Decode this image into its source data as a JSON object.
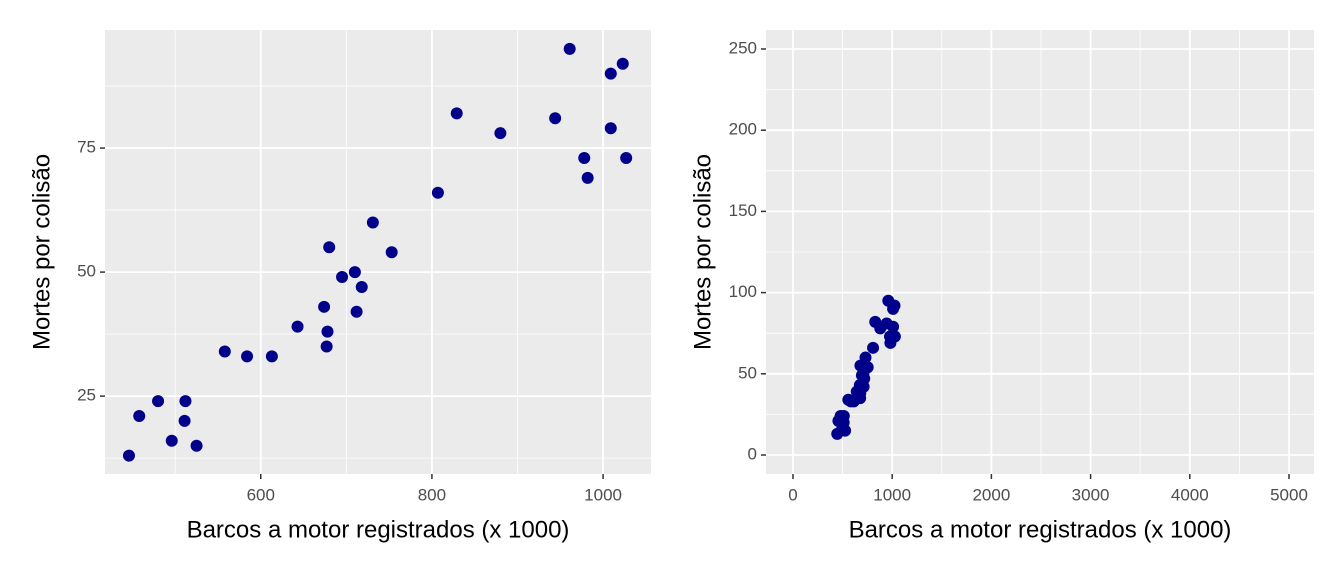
{
  "chart_data": [
    {
      "type": "scatter",
      "xlabel": "Barcos a motor registrados (x 1000)",
      "ylabel": "Mortes por colisão",
      "color": "#00008b",
      "x": [
        446,
        458,
        480,
        496,
        511,
        512,
        525,
        558,
        584,
        613,
        643,
        674,
        677,
        678,
        680,
        695,
        710,
        712,
        718,
        731,
        753,
        807,
        829,
        880,
        944,
        961,
        978,
        982,
        1009,
        1009,
        1023,
        1027
      ],
      "y": [
        13,
        21,
        24,
        16,
        20,
        24,
        15,
        34,
        33,
        33,
        39,
        43,
        35,
        38,
        55,
        49,
        50,
        42,
        47,
        60,
        54,
        66,
        82,
        78,
        81,
        95,
        73,
        69,
        79,
        90,
        92,
        73
      ],
      "xlim": [
        418,
        1056
      ],
      "ylim": [
        9.3,
        98.8
      ],
      "xticks": [
        600,
        800,
        1000
      ],
      "yticks": [
        25,
        50,
        75
      ],
      "grid": true
    },
    {
      "type": "scatter",
      "xlabel": "Barcos a motor registrados (x 1000)",
      "ylabel": "Mortes por colisão",
      "color": "#00008b",
      "x": [
        446,
        458,
        480,
        496,
        511,
        512,
        525,
        558,
        584,
        613,
        643,
        674,
        677,
        678,
        680,
        695,
        710,
        712,
        718,
        731,
        753,
        807,
        829,
        880,
        944,
        961,
        978,
        982,
        1009,
        1009,
        1023,
        1027
      ],
      "y": [
        13,
        21,
        24,
        16,
        20,
        24,
        15,
        34,
        33,
        33,
        39,
        43,
        35,
        38,
        55,
        49,
        50,
        42,
        47,
        60,
        54,
        66,
        82,
        78,
        81,
        95,
        73,
        69,
        79,
        90,
        92,
        73
      ],
      "xlim": [
        -272,
        5252
      ],
      "ylim": [
        -11.7,
        261.7
      ],
      "xticks": [
        0,
        1000,
        2000,
        3000,
        4000,
        5000
      ],
      "yticks": [
        0,
        50,
        100,
        150,
        200,
        250
      ],
      "grid": true
    }
  ]
}
